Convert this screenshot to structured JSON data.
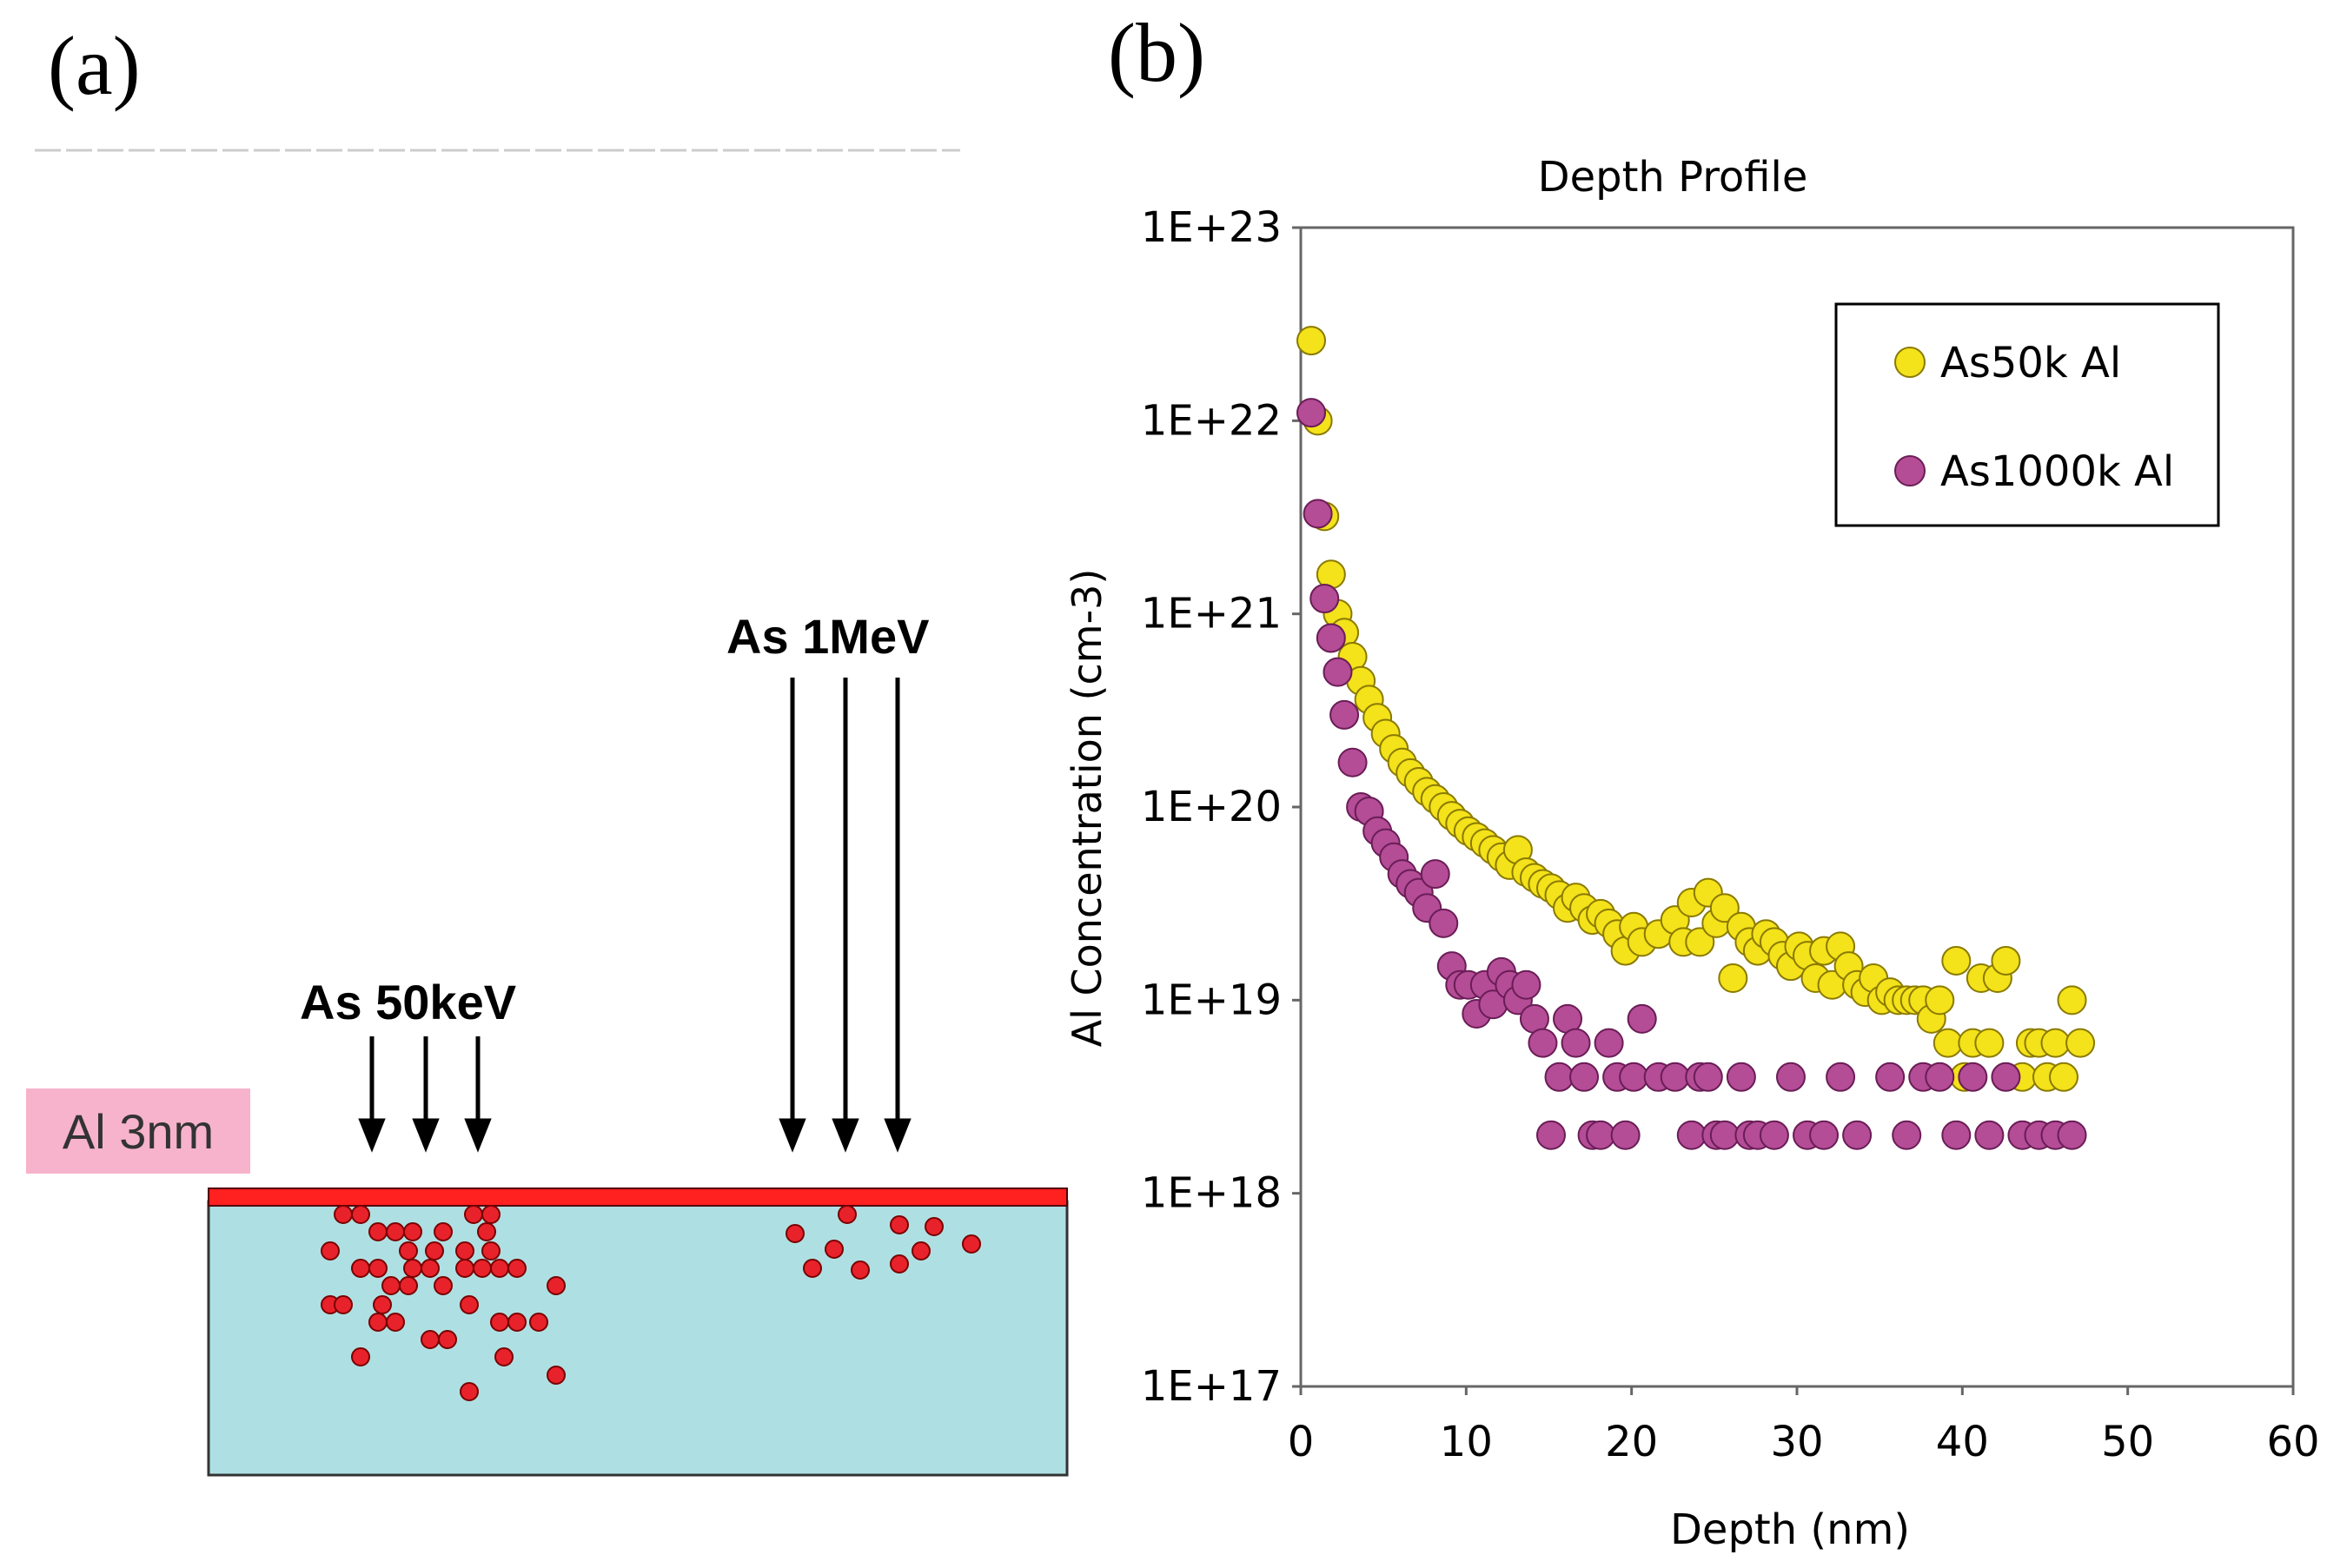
{
  "panel_a": {
    "label": "(a)",
    "layer_label": "Al 3nm",
    "beam_low_label": "As 50keV",
    "beam_high_label": "As 1MeV"
  },
  "panel_b": {
    "label": "(b)"
  },
  "colors": {
    "substrate": "#aee0e3",
    "al_layer": "#ff2020",
    "ion": "#e8222b",
    "series_50k": "#f4e21a",
    "series_1000k": "#b44c96"
  },
  "chart_data": {
    "type": "scatter",
    "title": "Depth Profile",
    "xlabel": "Depth (nm)",
    "ylabel": "Al Concentration (cm-3)",
    "xlim": [
      0,
      60
    ],
    "xticks": [
      0,
      10,
      20,
      30,
      40,
      50,
      60
    ],
    "ylim_log10": [
      17,
      23
    ],
    "yticks_labels": [
      "1E+23",
      "1E+22",
      "1E+21",
      "1E+20",
      "1E+19",
      "1E+18",
      "1E+17"
    ],
    "yscale": "log",
    "legend_position": "top-right",
    "series": [
      {
        "name": "As50k Al",
        "color": "#f4e21a",
        "points": [
          [
            0,
            2.6e+22
          ],
          [
            0.4,
            1e+22
          ],
          [
            0.8,
            3.2e+21
          ],
          [
            1.2,
            1.6e+21
          ],
          [
            1.6,
            1e+21
          ],
          [
            2.0,
            8e+20
          ],
          [
            2.5,
            6e+20
          ],
          [
            3.0,
            4.5e+20
          ],
          [
            3.5,
            3.6e+20
          ],
          [
            4.0,
            2.9e+20
          ],
          [
            4.5,
            2.4e+20
          ],
          [
            5.0,
            2e+20
          ],
          [
            5.5,
            1.7e+20
          ],
          [
            6.0,
            1.5e+20
          ],
          [
            6.5,
            1.35e+20
          ],
          [
            7.0,
            1.2e+20
          ],
          [
            7.5,
            1.1e+20
          ],
          [
            8.0,
            1e+20
          ],
          [
            8.5,
            9e+19
          ],
          [
            9.0,
            8.2e+19
          ],
          [
            9.5,
            7.5e+19
          ],
          [
            10,
            7e+19
          ],
          [
            10.5,
            6.5e+19
          ],
          [
            11,
            6e+19
          ],
          [
            11.5,
            5.5e+19
          ],
          [
            12,
            5e+19
          ],
          [
            12.5,
            6e+19
          ],
          [
            13,
            4.6e+19
          ],
          [
            13.5,
            4.3e+19
          ],
          [
            14,
            4e+19
          ],
          [
            14.5,
            3.8e+19
          ],
          [
            15,
            3.5e+19
          ],
          [
            15.5,
            3e+19
          ],
          [
            16,
            3.4e+19
          ],
          [
            16.5,
            3e+19
          ],
          [
            17,
            2.6e+19
          ],
          [
            17.5,
            2.8e+19
          ],
          [
            18,
            2.5e+19
          ],
          [
            18.5,
            2.2e+19
          ],
          [
            19,
            1.8e+19
          ],
          [
            19.5,
            2.4e+19
          ],
          [
            20,
            2e+19
          ],
          [
            21,
            2.2e+19
          ],
          [
            22,
            2.6e+19
          ],
          [
            22.5,
            2e+19
          ],
          [
            23,
            3.2e+19
          ],
          [
            23.5,
            2e+19
          ],
          [
            24,
            3.6e+19
          ],
          [
            24.5,
            2.5e+19
          ],
          [
            25,
            3e+19
          ],
          [
            25.5,
            1.3e+19
          ],
          [
            26,
            2.4e+19
          ],
          [
            26.5,
            2e+19
          ],
          [
            27,
            1.8e+19
          ],
          [
            27.5,
            2.2e+19
          ],
          [
            28,
            2e+19
          ],
          [
            28.5,
            1.7e+19
          ],
          [
            29,
            1.5e+19
          ],
          [
            29.5,
            1.9e+19
          ],
          [
            30,
            1.7e+19
          ],
          [
            30.5,
            1.3e+19
          ],
          [
            31,
            1.8e+19
          ],
          [
            31.5,
            1.2e+19
          ],
          [
            32,
            1.9e+19
          ],
          [
            32.5,
            1.5e+19
          ],
          [
            33,
            1.2e+19
          ],
          [
            33.5,
            1.1e+19
          ],
          [
            34,
            1.3e+19
          ],
          [
            34.5,
            1e+19
          ],
          [
            35,
            1.1e+19
          ],
          [
            35.5,
            1e+19
          ],
          [
            36,
            1e+19
          ],
          [
            36.5,
            1e+19
          ],
          [
            37,
            1e+19
          ],
          [
            37.5,
            8e+18
          ],
          [
            38,
            1e+19
          ],
          [
            38.5,
            6e+18
          ],
          [
            39,
            1.6e+19
          ],
          [
            39.5,
            4e+18
          ],
          [
            40,
            6e+18
          ],
          [
            40.5,
            1.3e+19
          ],
          [
            41,
            6e+18
          ],
          [
            41.5,
            1.3e+19
          ],
          [
            42,
            1.6e+19
          ],
          [
            43,
            4e+18
          ],
          [
            43.5,
            6e+18
          ],
          [
            44,
            6e+18
          ],
          [
            44.5,
            4e+18
          ],
          [
            45,
            6e+18
          ],
          [
            45.5,
            4e+18
          ],
          [
            46,
            1e+19
          ],
          [
            46.5,
            6e+18
          ]
        ]
      },
      {
        "name": "As1000k Al",
        "color": "#b44c96",
        "points": [
          [
            0,
            1.1e+22
          ],
          [
            0.4,
            3.3e+21
          ],
          [
            0.8,
            1.2e+21
          ],
          [
            1.2,
            7.5e+20
          ],
          [
            1.6,
            5e+20
          ],
          [
            2.0,
            3e+20
          ],
          [
            2.5,
            1.7e+20
          ],
          [
            3.0,
            1e+20
          ],
          [
            3.5,
            9.5e+19
          ],
          [
            4.0,
            7.5e+19
          ],
          [
            4.5,
            6.5e+19
          ],
          [
            5.0,
            5.5e+19
          ],
          [
            5.5,
            4.5e+19
          ],
          [
            6.0,
            4e+19
          ],
          [
            6.5,
            3.6e+19
          ],
          [
            7.0,
            3e+19
          ],
          [
            7.5,
            4.5e+19
          ],
          [
            8.0,
            2.5e+19
          ],
          [
            8.5,
            1.5e+19
          ],
          [
            9.0,
            1.2e+19
          ],
          [
            9.5,
            1.2e+19
          ],
          [
            10,
            8.5e+18
          ],
          [
            10.5,
            1.2e+19
          ],
          [
            11,
            9.5e+18
          ],
          [
            11.5,
            1.4e+19
          ],
          [
            12,
            1.2e+19
          ],
          [
            12.5,
            1e+19
          ],
          [
            13,
            1.2e+19
          ],
          [
            13.5,
            8e+18
          ],
          [
            14,
            6e+18
          ],
          [
            14.5,
            2e+18
          ],
          [
            15,
            4e+18
          ],
          [
            15.5,
            8e+18
          ],
          [
            16,
            6e+18
          ],
          [
            16.5,
            4e+18
          ],
          [
            17,
            2e+18
          ],
          [
            17.5,
            2e+18
          ],
          [
            18,
            6e+18
          ],
          [
            18.5,
            4e+18
          ],
          [
            19,
            2e+18
          ],
          [
            19.5,
            4e+18
          ],
          [
            20,
            8e+18
          ],
          [
            21,
            4e+18
          ],
          [
            22,
            4e+18
          ],
          [
            23,
            2e+18
          ],
          [
            23.5,
            4e+18
          ],
          [
            24,
            4e+18
          ],
          [
            24.5,
            2e+18
          ],
          [
            25,
            2e+18
          ],
          [
            26,
            4e+18
          ],
          [
            26.5,
            2e+18
          ],
          [
            27,
            2e+18
          ],
          [
            28,
            2e+18
          ],
          [
            29,
            4e+18
          ],
          [
            30,
            2e+18
          ],
          [
            31,
            2e+18
          ],
          [
            32,
            4e+18
          ],
          [
            33,
            2e+18
          ],
          [
            35,
            4e+18
          ],
          [
            36,
            2e+18
          ],
          [
            37,
            4e+18
          ],
          [
            38,
            4e+18
          ],
          [
            39,
            2e+18
          ],
          [
            40,
            4e+18
          ],
          [
            41,
            2e+18
          ],
          [
            42,
            4e+18
          ],
          [
            43,
            2e+18
          ],
          [
            44,
            2e+18
          ],
          [
            45,
            2e+18
          ],
          [
            46,
            2e+18
          ]
        ]
      }
    ]
  }
}
